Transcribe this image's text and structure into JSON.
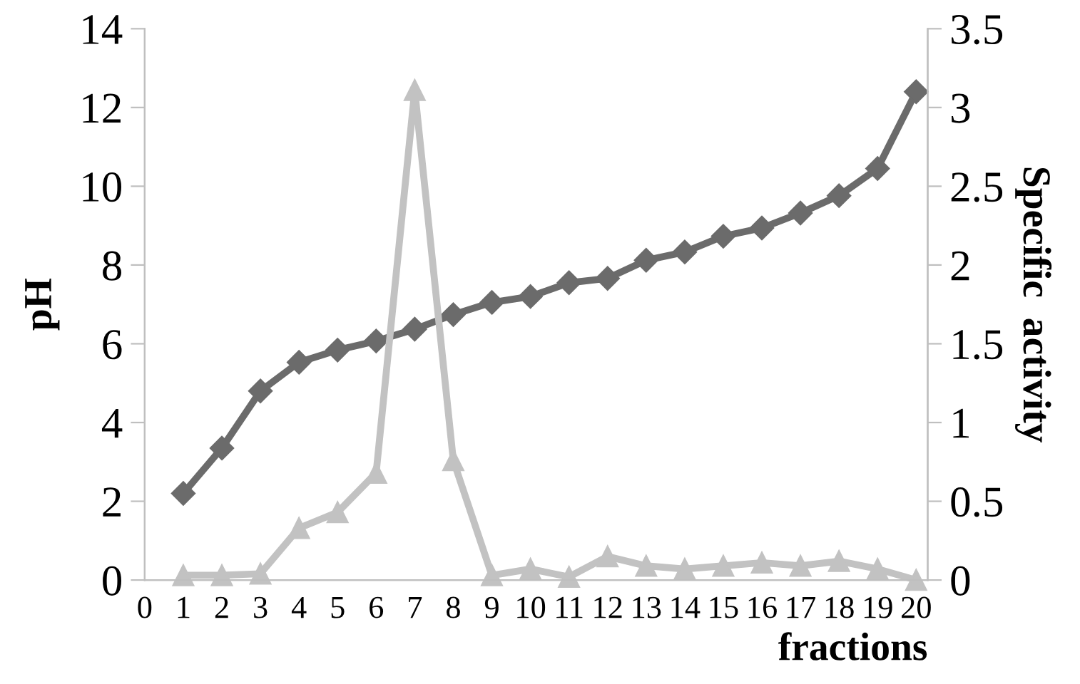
{
  "chart_data": {
    "type": "line",
    "xlabel": "fractions",
    "ylabel": "pH",
    "y2label": "Specific  activity",
    "x": [
      1,
      2,
      3,
      4,
      5,
      6,
      7,
      8,
      9,
      10,
      11,
      12,
      13,
      14,
      15,
      16,
      17,
      18,
      19,
      20
    ],
    "xlim": [
      0,
      20.3
    ],
    "xticks": [
      0,
      1,
      2,
      3,
      4,
      5,
      6,
      7,
      8,
      9,
      10,
      11,
      12,
      13,
      14,
      15,
      16,
      17,
      18,
      19,
      20
    ],
    "ylim": [
      0,
      14
    ],
    "yticks": [
      0,
      2,
      4,
      6,
      8,
      10,
      12,
      14
    ],
    "y2lim": [
      0,
      3.5
    ],
    "y2ticks": [
      0,
      0.5,
      1,
      1.5,
      2,
      2.5,
      3,
      3.5
    ],
    "line_style": "solid",
    "series": [
      {
        "color": "#6b6b6b",
        "marker": "diamond",
        "values": [
          2.2,
          3.35,
          4.8,
          5.53,
          5.84,
          6.07,
          6.37,
          6.74,
          7.05,
          7.2,
          7.55,
          7.66,
          8.12,
          8.33,
          8.73,
          8.94,
          9.32,
          9.76,
          10.45,
          12.4
        ]
      },
      {
        "color": "#c2c2c2",
        "marker": "triangle",
        "axis": "y2",
        "values": [
          0.03,
          0.03,
          0.04,
          0.33,
          0.43,
          0.68,
          3.11,
          0.76,
          0.03,
          0.07,
          0.02,
          0.15,
          0.09,
          0.07,
          0.09,
          0.11,
          0.09,
          0.12,
          0.07,
          0.0
        ]
      }
    ]
  }
}
